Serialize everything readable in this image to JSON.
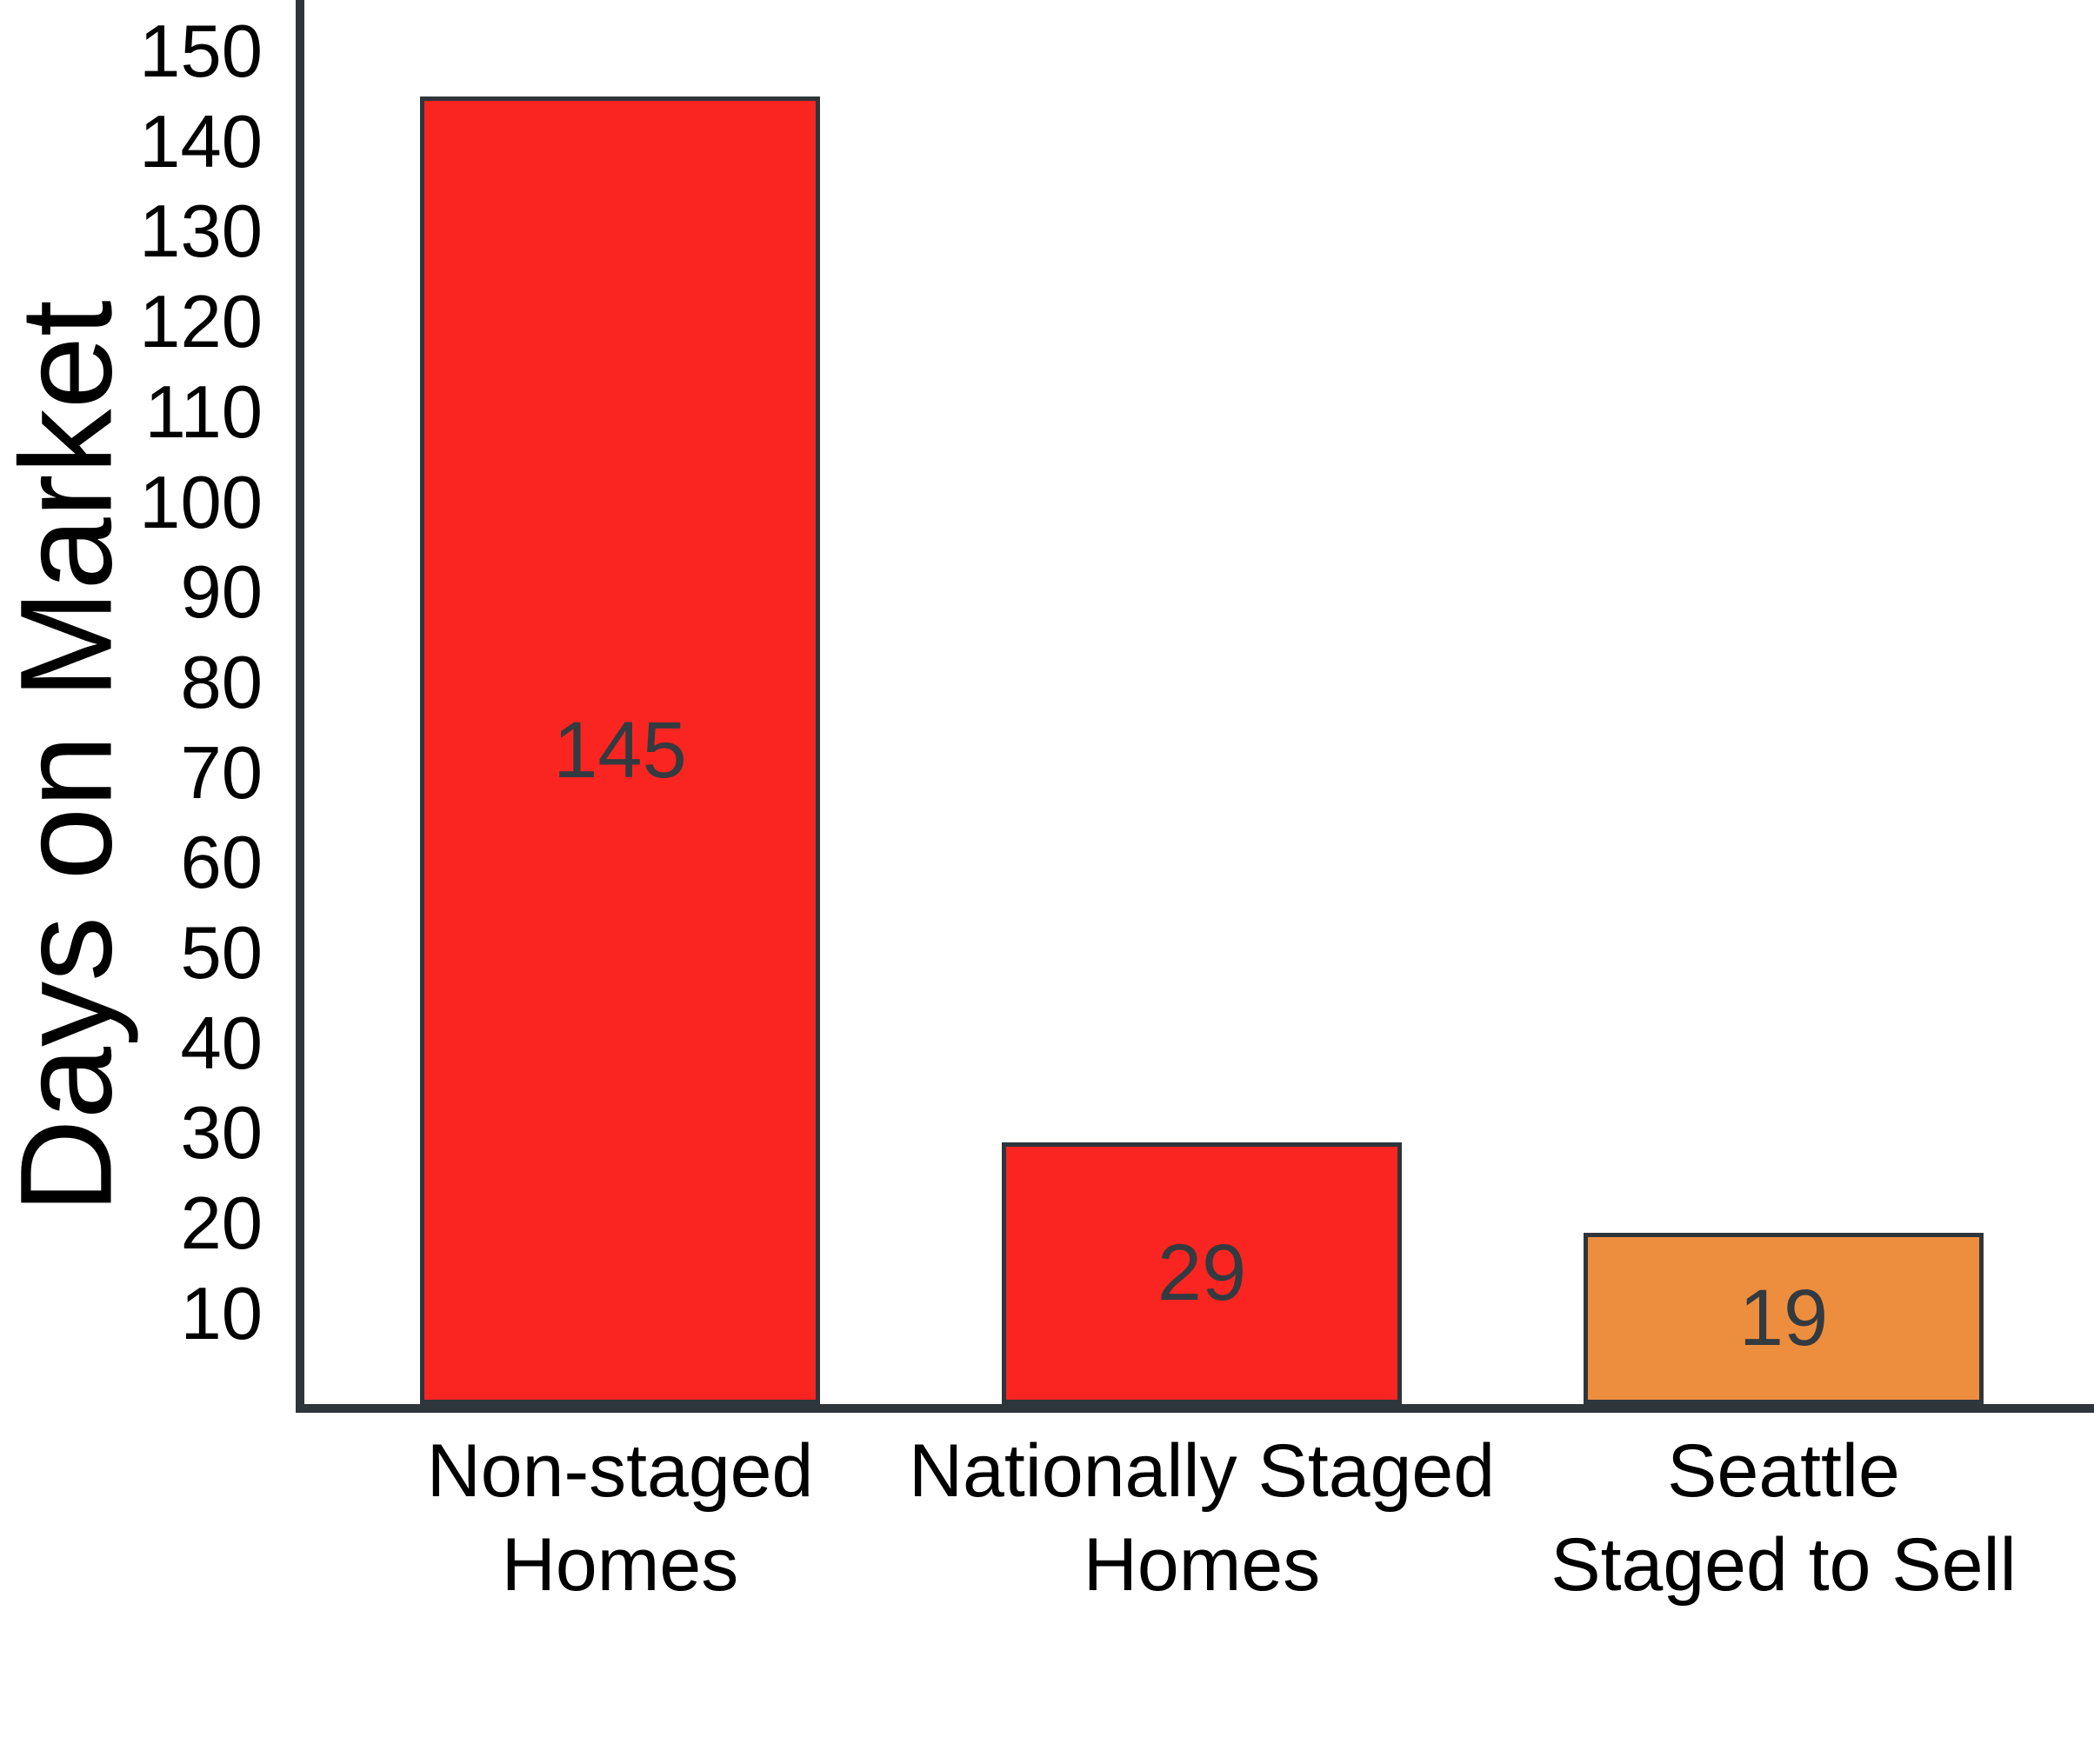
{
  "chart_data": {
    "type": "bar",
    "title": "",
    "xlabel": "",
    "ylabel": "Days on Market",
    "categories": [
      "Non-staged\nHomes",
      "Nationally Staged\nHomes",
      "Seattle\nStaged to Sell"
    ],
    "values": [
      145,
      29,
      19
    ],
    "bar_value_labels": [
      "145",
      "29",
      "19"
    ],
    "bar_colors": [
      "#fa2521",
      "#fa2521",
      "#ed8e3e"
    ],
    "bar_border_color": "#2e353b",
    "axis_color": "#2e353b",
    "value_label_color": "#333a40",
    "tick_label_color": "#000000",
    "yticks": [
      10,
      20,
      30,
      40,
      50,
      60,
      70,
      80,
      90,
      100,
      110,
      120,
      130,
      140,
      150
    ],
    "ylim": [
      0,
      156
    ],
    "grid": false,
    "legend_position": "none"
  }
}
